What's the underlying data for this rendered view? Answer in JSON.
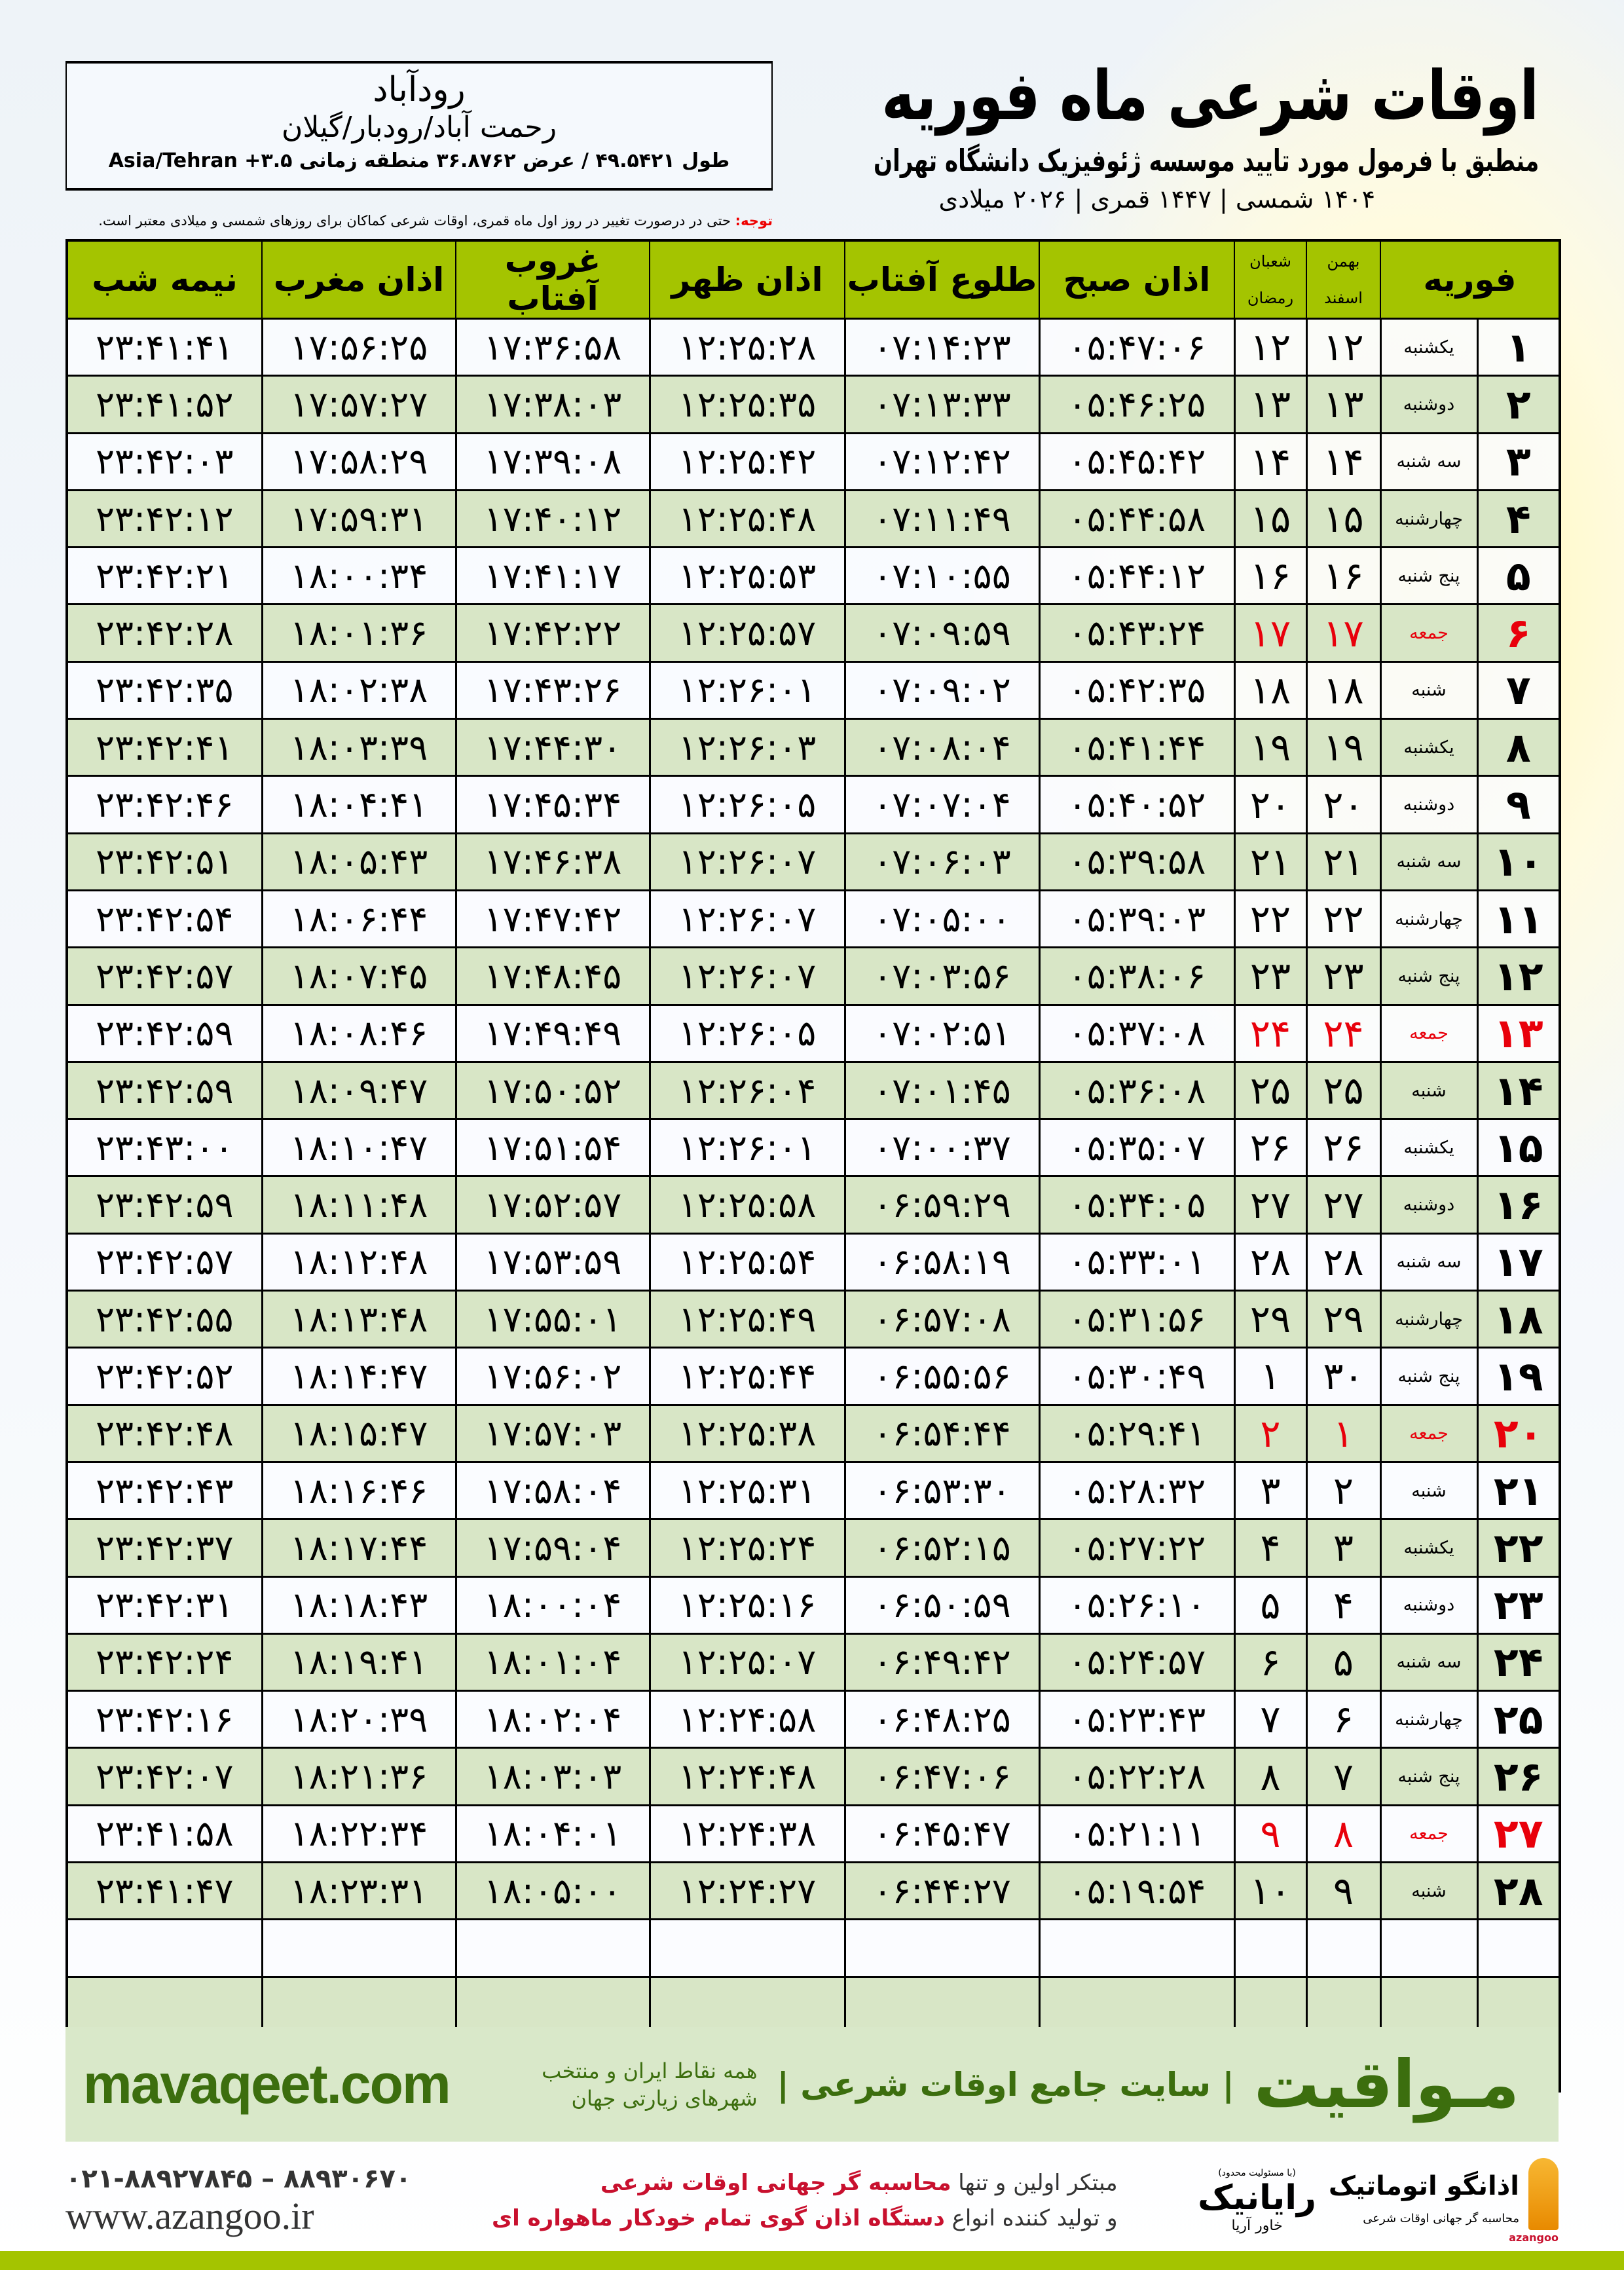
{
  "header": {
    "title": "اوقات شرعی ماه فوریه",
    "subtitle": "منطبق با فرمول مورد تایید موسسه ژئوفیزیک دانشگاه تهران",
    "date_line": "۱۴۰۴ شمسی | ۱۴۴۷ قمری | ۲۰۲۶ میلادی"
  },
  "location": {
    "city": "رودآباد",
    "region": "رحمت آباد/رودبار/گیلان",
    "coords": "طول ۴۹.۵۴۲۱ / عرض ۳۶.۸۷۶۲ منطقه زمانی ۳.۵+ Asia/Tehran"
  },
  "note": {
    "label": "توجه:",
    "text": " حتی در درصورت تغییر در روز اول ماه قمری، اوقات شرعی کماکان برای روزهای شمسی و میلادی معتبر است."
  },
  "table": {
    "headers": {
      "month": "فوریه",
      "solar_top": "بهمن",
      "solar_bottom": "اسفند",
      "lunar_top": "شعبان",
      "lunar_bottom": "رمضان",
      "fajr": "اذان صبح",
      "sunrise": "طلوع آفتاب",
      "dhuhr": "اذان ظهر",
      "sunset": "غروب آفتاب",
      "maghrib": "اذان مغرب",
      "midnight": "نیمه شب"
    },
    "holiday_color": "#e8000b",
    "header_color": "#a4c400",
    "rows": [
      {
        "day": "۱",
        "weekday": "یکشنبه",
        "solar": "۱۲",
        "lunar": "۱۲",
        "fajr": "۰۵:۴۷:۰۶",
        "sunrise": "۰۷:۱۴:۲۳",
        "dhuhr": "۱۲:۲۵:۲۸",
        "sunset": "۱۷:۳۶:۵۸",
        "maghrib": "۱۷:۵۶:۲۵",
        "midnight": "۲۳:۴۱:۴۱"
      },
      {
        "day": "۲",
        "weekday": "دوشنبه",
        "solar": "۱۳",
        "lunar": "۱۳",
        "fajr": "۰۵:۴۶:۲۵",
        "sunrise": "۰۷:۱۳:۳۳",
        "dhuhr": "۱۲:۲۵:۳۵",
        "sunset": "۱۷:۳۸:۰۳",
        "maghrib": "۱۷:۵۷:۲۷",
        "midnight": "۲۳:۴۱:۵۲"
      },
      {
        "day": "۳",
        "weekday": "سه شنبه",
        "solar": "۱۴",
        "lunar": "۱۴",
        "fajr": "۰۵:۴۵:۴۲",
        "sunrise": "۰۷:۱۲:۴۲",
        "dhuhr": "۱۲:۲۵:۴۲",
        "sunset": "۱۷:۳۹:۰۸",
        "maghrib": "۱۷:۵۸:۲۹",
        "midnight": "۲۳:۴۲:۰۳"
      },
      {
        "day": "۴",
        "weekday": "چهارشنبه",
        "solar": "۱۵",
        "lunar": "۱۵",
        "fajr": "۰۵:۴۴:۵۸",
        "sunrise": "۰۷:۱۱:۴۹",
        "dhuhr": "۱۲:۲۵:۴۸",
        "sunset": "۱۷:۴۰:۱۲",
        "maghrib": "۱۷:۵۹:۳۱",
        "midnight": "۲۳:۴۲:۱۲"
      },
      {
        "day": "۵",
        "weekday": "پنج شنبه",
        "solar": "۱۶",
        "lunar": "۱۶",
        "fajr": "۰۵:۴۴:۱۲",
        "sunrise": "۰۷:۱۰:۵۵",
        "dhuhr": "۱۲:۲۵:۵۳",
        "sunset": "۱۷:۴۱:۱۷",
        "maghrib": "۱۸:۰۰:۳۴",
        "midnight": "۲۳:۴۲:۲۱"
      },
      {
        "day": "۶",
        "weekday": "جمعه",
        "holiday": true,
        "solar": "۱۷",
        "lunar": "۱۷",
        "fajr": "۰۵:۴۳:۲۴",
        "sunrise": "۰۷:۰۹:۵۹",
        "dhuhr": "۱۲:۲۵:۵۷",
        "sunset": "۱۷:۴۲:۲۲",
        "maghrib": "۱۸:۰۱:۳۶",
        "midnight": "۲۳:۴۲:۲۸"
      },
      {
        "day": "۷",
        "weekday": "شنبه",
        "solar": "۱۸",
        "lunar": "۱۸",
        "fajr": "۰۵:۴۲:۳۵",
        "sunrise": "۰۷:۰۹:۰۲",
        "dhuhr": "۱۲:۲۶:۰۱",
        "sunset": "۱۷:۴۳:۲۶",
        "maghrib": "۱۸:۰۲:۳۸",
        "midnight": "۲۳:۴۲:۳۵"
      },
      {
        "day": "۸",
        "weekday": "یکشنبه",
        "solar": "۱۹",
        "lunar": "۱۹",
        "fajr": "۰۵:۴۱:۴۴",
        "sunrise": "۰۷:۰۸:۰۴",
        "dhuhr": "۱۲:۲۶:۰۳",
        "sunset": "۱۷:۴۴:۳۰",
        "maghrib": "۱۸:۰۳:۳۹",
        "midnight": "۲۳:۴۲:۴۱"
      },
      {
        "day": "۹",
        "weekday": "دوشنبه",
        "solar": "۲۰",
        "lunar": "۲۰",
        "fajr": "۰۵:۴۰:۵۲",
        "sunrise": "۰۷:۰۷:۰۴",
        "dhuhr": "۱۲:۲۶:۰۵",
        "sunset": "۱۷:۴۵:۳۴",
        "maghrib": "۱۸:۰۴:۴۱",
        "midnight": "۲۳:۴۲:۴۶"
      },
      {
        "day": "۱۰",
        "weekday": "سه شنبه",
        "solar": "۲۱",
        "lunar": "۲۱",
        "fajr": "۰۵:۳۹:۵۸",
        "sunrise": "۰۷:۰۶:۰۳",
        "dhuhr": "۱۲:۲۶:۰۷",
        "sunset": "۱۷:۴۶:۳۸",
        "maghrib": "۱۸:۰۵:۴۳",
        "midnight": "۲۳:۴۲:۵۱"
      },
      {
        "day": "۱۱",
        "weekday": "چهارشنبه",
        "solar": "۲۲",
        "lunar": "۲۲",
        "fajr": "۰۵:۳۹:۰۳",
        "sunrise": "۰۷:۰۵:۰۰",
        "dhuhr": "۱۲:۲۶:۰۷",
        "sunset": "۱۷:۴۷:۴۲",
        "maghrib": "۱۸:۰۶:۴۴",
        "midnight": "۲۳:۴۲:۵۴"
      },
      {
        "day": "۱۲",
        "weekday": "پنج شنبه",
        "solar": "۲۳",
        "lunar": "۲۳",
        "fajr": "۰۵:۳۸:۰۶",
        "sunrise": "۰۷:۰۳:۵۶",
        "dhuhr": "۱۲:۲۶:۰۷",
        "sunset": "۱۷:۴۸:۴۵",
        "maghrib": "۱۸:۰۷:۴۵",
        "midnight": "۲۳:۴۲:۵۷"
      },
      {
        "day": "۱۳",
        "weekday": "جمعه",
        "holiday": true,
        "solar": "۲۴",
        "lunar": "۲۴",
        "fajr": "۰۵:۳۷:۰۸",
        "sunrise": "۰۷:۰۲:۵۱",
        "dhuhr": "۱۲:۲۶:۰۵",
        "sunset": "۱۷:۴۹:۴۹",
        "maghrib": "۱۸:۰۸:۴۶",
        "midnight": "۲۳:۴۲:۵۹"
      },
      {
        "day": "۱۴",
        "weekday": "شنبه",
        "solar": "۲۵",
        "lunar": "۲۵",
        "fajr": "۰۵:۳۶:۰۸",
        "sunrise": "۰۷:۰۱:۴۵",
        "dhuhr": "۱۲:۲۶:۰۴",
        "sunset": "۱۷:۵۰:۵۲",
        "maghrib": "۱۸:۰۹:۴۷",
        "midnight": "۲۳:۴۲:۵۹"
      },
      {
        "day": "۱۵",
        "weekday": "یکشنبه",
        "solar": "۲۶",
        "lunar": "۲۶",
        "fajr": "۰۵:۳۵:۰۷",
        "sunrise": "۰۷:۰۰:۳۷",
        "dhuhr": "۱۲:۲۶:۰۱",
        "sunset": "۱۷:۵۱:۵۴",
        "maghrib": "۱۸:۱۰:۴۷",
        "midnight": "۲۳:۴۳:۰۰"
      },
      {
        "day": "۱۶",
        "weekday": "دوشنبه",
        "solar": "۲۷",
        "lunar": "۲۷",
        "fajr": "۰۵:۳۴:۰۵",
        "sunrise": "۰۶:۵۹:۲۹",
        "dhuhr": "۱۲:۲۵:۵۸",
        "sunset": "۱۷:۵۲:۵۷",
        "maghrib": "۱۸:۱۱:۴۸",
        "midnight": "۲۳:۴۲:۵۹"
      },
      {
        "day": "۱۷",
        "weekday": "سه شنبه",
        "solar": "۲۸",
        "lunar": "۲۸",
        "fajr": "۰۵:۳۳:۰۱",
        "sunrise": "۰۶:۵۸:۱۹",
        "dhuhr": "۱۲:۲۵:۵۴",
        "sunset": "۱۷:۵۳:۵۹",
        "maghrib": "۱۸:۱۲:۴۸",
        "midnight": "۲۳:۴۲:۵۷"
      },
      {
        "day": "۱۸",
        "weekday": "چهارشنبه",
        "solar": "۲۹",
        "lunar": "۲۹",
        "fajr": "۰۵:۳۱:۵۶",
        "sunrise": "۰۶:۵۷:۰۸",
        "dhuhr": "۱۲:۲۵:۴۹",
        "sunset": "۱۷:۵۵:۰۱",
        "maghrib": "۱۸:۱۳:۴۸",
        "midnight": "۲۳:۴۲:۵۵"
      },
      {
        "day": "۱۹",
        "weekday": "پنج شنبه",
        "solar": "۳۰",
        "lunar": "۱",
        "fajr": "۰۵:۳۰:۴۹",
        "sunrise": "۰۶:۵۵:۵۶",
        "dhuhr": "۱۲:۲۵:۴۴",
        "sunset": "۱۷:۵۶:۰۲",
        "maghrib": "۱۸:۱۴:۴۷",
        "midnight": "۲۳:۴۲:۵۲"
      },
      {
        "day": "۲۰",
        "weekday": "جمعه",
        "holiday": true,
        "solar": "۱",
        "lunar": "۲",
        "fajr": "۰۵:۲۹:۴۱",
        "sunrise": "۰۶:۵۴:۴۴",
        "dhuhr": "۱۲:۲۵:۳۸",
        "sunset": "۱۷:۵۷:۰۳",
        "maghrib": "۱۸:۱۵:۴۷",
        "midnight": "۲۳:۴۲:۴۸"
      },
      {
        "day": "۲۱",
        "weekday": "شنبه",
        "solar": "۲",
        "lunar": "۳",
        "fajr": "۰۵:۲۸:۳۲",
        "sunrise": "۰۶:۵۳:۳۰",
        "dhuhr": "۱۲:۲۵:۳۱",
        "sunset": "۱۷:۵۸:۰۴",
        "maghrib": "۱۸:۱۶:۴۶",
        "midnight": "۲۳:۴۲:۴۳"
      },
      {
        "day": "۲۲",
        "weekday": "یکشنبه",
        "solar": "۳",
        "lunar": "۴",
        "fajr": "۰۵:۲۷:۲۲",
        "sunrise": "۰۶:۵۲:۱۵",
        "dhuhr": "۱۲:۲۵:۲۴",
        "sunset": "۱۷:۵۹:۰۴",
        "maghrib": "۱۸:۱۷:۴۴",
        "midnight": "۲۳:۴۲:۳۷"
      },
      {
        "day": "۲۳",
        "weekday": "دوشنبه",
        "solar": "۴",
        "lunar": "۵",
        "fajr": "۰۵:۲۶:۱۰",
        "sunrise": "۰۶:۵۰:۵۹",
        "dhuhr": "۱۲:۲۵:۱۶",
        "sunset": "۱۸:۰۰:۰۴",
        "maghrib": "۱۸:۱۸:۴۳",
        "midnight": "۲۳:۴۲:۳۱"
      },
      {
        "day": "۲۴",
        "weekday": "سه شنبه",
        "solar": "۵",
        "lunar": "۶",
        "fajr": "۰۵:۲۴:۵۷",
        "sunrise": "۰۶:۴۹:۴۲",
        "dhuhr": "۱۲:۲۵:۰۷",
        "sunset": "۱۸:۰۱:۰۴",
        "maghrib": "۱۸:۱۹:۴۱",
        "midnight": "۲۳:۴۲:۲۴"
      },
      {
        "day": "۲۵",
        "weekday": "چهارشنبه",
        "solar": "۶",
        "lunar": "۷",
        "fajr": "۰۵:۲۳:۴۳",
        "sunrise": "۰۶:۴۸:۲۵",
        "dhuhr": "۱۲:۲۴:۵۸",
        "sunset": "۱۸:۰۲:۰۴",
        "maghrib": "۱۸:۲۰:۳۹",
        "midnight": "۲۳:۴۲:۱۶"
      },
      {
        "day": "۲۶",
        "weekday": "پنج شنبه",
        "solar": "۷",
        "lunar": "۸",
        "fajr": "۰۵:۲۲:۲۸",
        "sunrise": "۰۶:۴۷:۰۶",
        "dhuhr": "۱۲:۲۴:۴۸",
        "sunset": "۱۸:۰۳:۰۳",
        "maghrib": "۱۸:۲۱:۳۶",
        "midnight": "۲۳:۴۲:۰۷"
      },
      {
        "day": "۲۷",
        "weekday": "جمعه",
        "holiday": true,
        "solar": "۸",
        "lunar": "۹",
        "fajr": "۰۵:۲۱:۱۱",
        "sunrise": "۰۶:۴۵:۴۷",
        "dhuhr": "۱۲:۲۴:۳۸",
        "sunset": "۱۸:۰۴:۰۱",
        "maghrib": "۱۸:۲۲:۳۴",
        "midnight": "۲۳:۴۱:۵۸"
      },
      {
        "day": "۲۸",
        "weekday": "شنبه",
        "solar": "۹",
        "lunar": "۱۰",
        "fajr": "۰۵:۱۹:۵۴",
        "sunrise": "۰۶:۴۴:۲۷",
        "dhuhr": "۱۲:۲۴:۲۷",
        "sunset": "۱۸:۰۵:۰۰",
        "maghrib": "۱۸:۲۳:۳۱",
        "midnight": "۲۳:۴۱:۴۷"
      }
    ]
  },
  "promo": {
    "brand": "مـواقیت",
    "tagline": "| سایت جامع اوقات شرعی |",
    "tagline2": "همه نقاط ایران و منتخب شهرهای زیارتی جهان",
    "url": "mavaqeet.com"
  },
  "contact": {
    "phone": "۰۲۱-۸۸۹۲۷۸۴۵ – ۸۸۹۳۰۶۷۰",
    "site": "www.azangoo.ir"
  },
  "slogan": {
    "line1_a": "مبتکر اولین و تنها ",
    "line1_b": "محاسبه گر جهانی اوقات شرعی",
    "line2_a": "و تولید کننده انواع ",
    "line2_b": "دستگاه اذان گوی تمام خودکار ماهواره ای"
  },
  "logos": {
    "raynik_note": "(با مسئولیت محدود)",
    "raynik": "رایانیک",
    "raynik_sub": "خاور آریا",
    "azangoo": "اذانگو اتوماتیک",
    "azangoo_sub": "محاسبه گر جهانی اوقات شرعی",
    "azangoo_latin": "azangoo"
  }
}
